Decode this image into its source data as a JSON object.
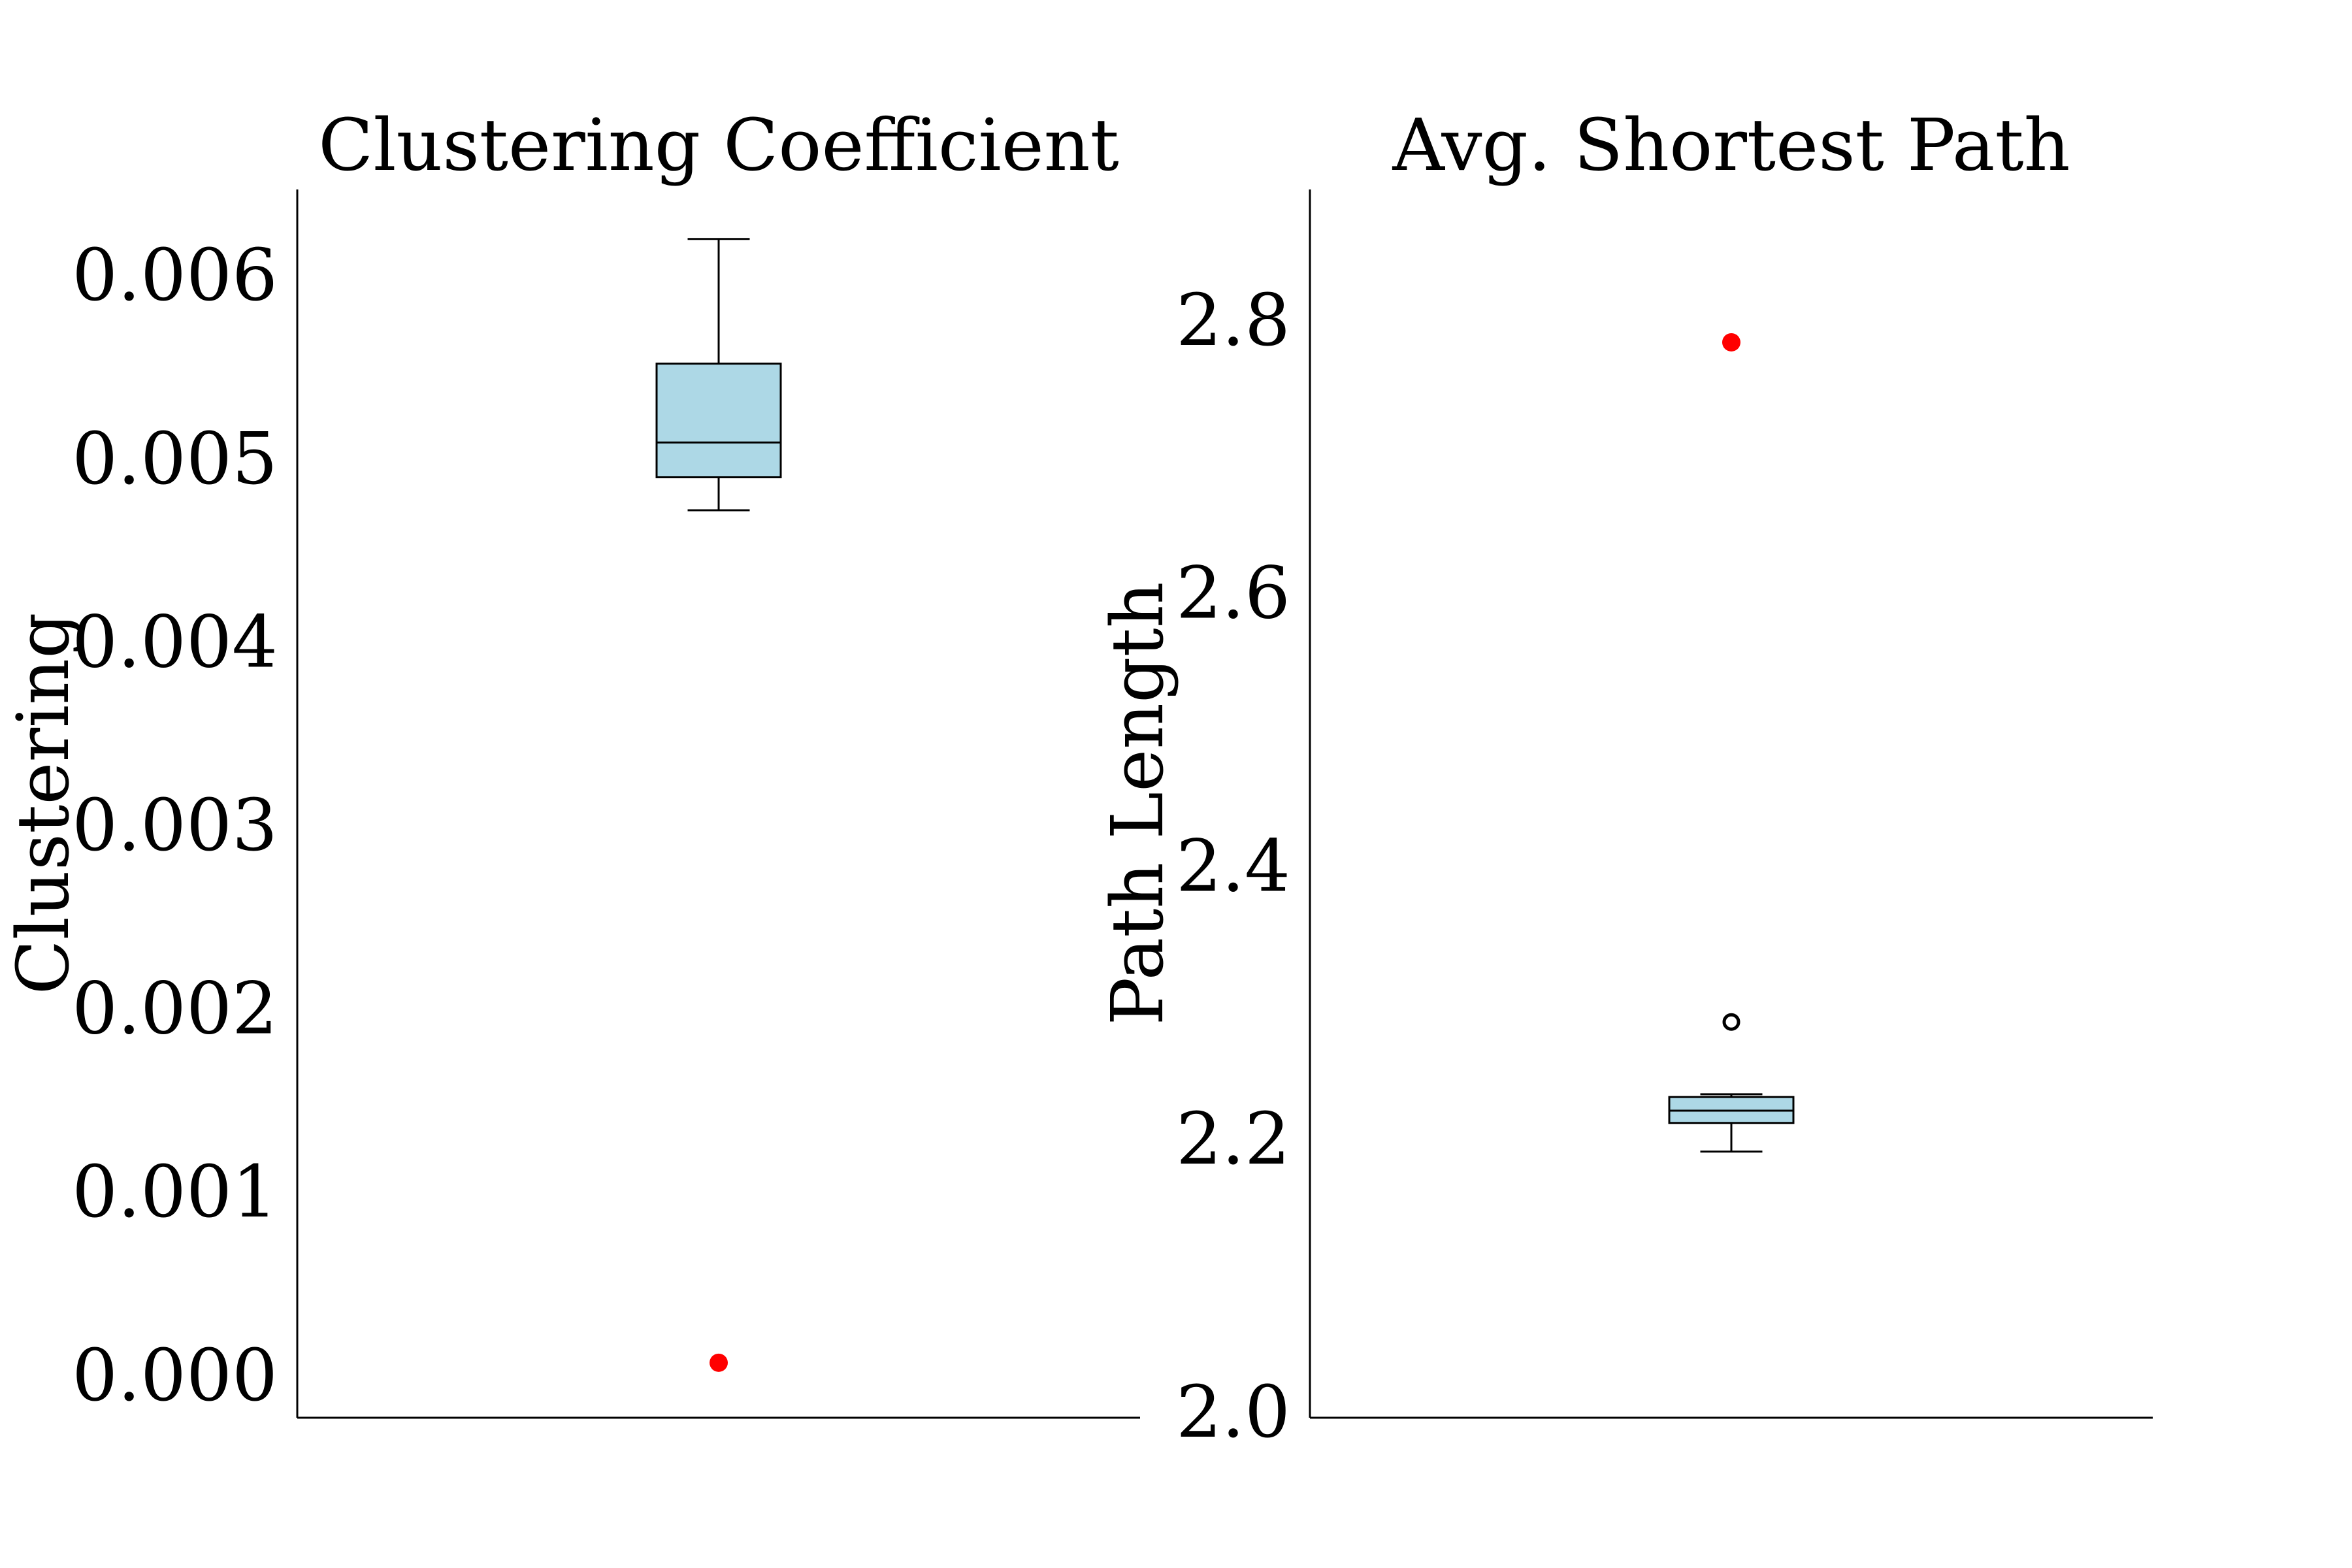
{
  "chart_data": [
    {
      "type": "box",
      "title": "Clustering Coefficient",
      "xlabel": "",
      "ylabel": "Clustering",
      "ylim": [
        -0.0002,
        0.0065
      ],
      "yticks": [
        0.0,
        0.001,
        0.002,
        0.003,
        0.004,
        0.005,
        0.006
      ],
      "ytick_labels": [
        "0.000",
        "0.001",
        "0.002",
        "0.003",
        "0.004",
        "0.005",
        "0.006"
      ],
      "grid": false,
      "box": {
        "whisker_low": 0.00475,
        "q1": 0.00493,
        "median": 0.00512,
        "q3": 0.00555,
        "whisker_high": 0.00623,
        "fill": "#add8e6",
        "fliers": []
      },
      "highlight_points": [
        {
          "value": 0.0001,
          "color": "#ff0000"
        }
      ]
    },
    {
      "type": "box",
      "title": "Avg. Shortest Path",
      "xlabel": "",
      "ylabel": "Path Length",
      "ylim": [
        2.0,
        2.9
      ],
      "yticks": [
        2.0,
        2.2,
        2.4,
        2.6,
        2.8
      ],
      "ytick_labels": [
        "2.0",
        "2.2",
        "2.4",
        "2.6",
        "2.8"
      ],
      "grid": false,
      "box": {
        "whisker_low": 2.195,
        "q1": 2.216,
        "median": 2.225,
        "q3": 2.235,
        "whisker_high": 2.237,
        "fill": "#add8e6",
        "fliers": [
          2.29
        ]
      },
      "highlight_points": [
        {
          "value": 2.788,
          "color": "#ff0000"
        }
      ]
    }
  ]
}
